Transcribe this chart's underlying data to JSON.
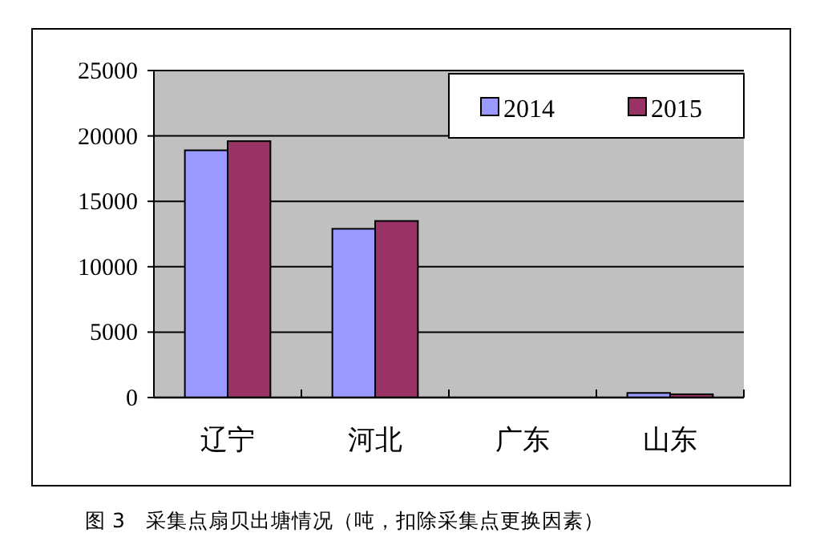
{
  "chart_data": {
    "type": "bar",
    "categories": [
      "辽宁",
      "河北",
      "广东",
      "山东"
    ],
    "series": [
      {
        "name": "2014",
        "color": "#9999ff",
        "values": [
          18900,
          12900,
          0,
          350
        ]
      },
      {
        "name": "2015",
        "color": "#993366",
        "values": [
          19600,
          13500,
          0,
          250
        ]
      }
    ],
    "ylim": [
      0,
      25000
    ],
    "yticks": [
      0,
      5000,
      10000,
      15000,
      20000,
      25000
    ],
    "grid": "y",
    "legend": "top right",
    "annotations": [
      "图 3　采集点扇贝出塘情况（吨，扣除采集点更换因素）"
    ]
  }
}
